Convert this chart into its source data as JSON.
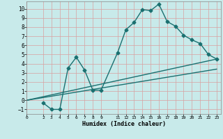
{
  "xlabel": "Humidex (Indice chaleur)",
  "ylabel": "",
  "xlim": [
    0,
    23.5
  ],
  "ylim": [
    -1.5,
    10.8
  ],
  "xticks": [
    0,
    2,
    3,
    4,
    5,
    6,
    7,
    8,
    9,
    11,
    12,
    13,
    14,
    15,
    16,
    17,
    18,
    19,
    20,
    21,
    22,
    23
  ],
  "yticks": [
    -1,
    0,
    1,
    2,
    3,
    4,
    5,
    6,
    7,
    8,
    9,
    10
  ],
  "background_color": "#c8eaea",
  "grid_color": "#d9a0a0",
  "line_color": "#1a7070",
  "line1_x": [
    2,
    3,
    4,
    5,
    6,
    7,
    8,
    9,
    11,
    12,
    13,
    14,
    15,
    16,
    17,
    18,
    19,
    20,
    21,
    22,
    23
  ],
  "line1_y": [
    -0.3,
    -1.0,
    -1.0,
    3.5,
    4.7,
    3.3,
    1.1,
    1.1,
    5.2,
    7.7,
    8.5,
    9.9,
    9.8,
    10.5,
    8.6,
    8.1,
    7.1,
    6.6,
    6.2,
    5.0,
    4.5
  ],
  "line2_x": [
    0,
    23
  ],
  "line2_y": [
    0.0,
    4.5
  ],
  "line3_x": [
    0,
    23
  ],
  "line3_y": [
    0.0,
    3.4
  ],
  "marker": "D",
  "markersize": 2.5,
  "linewidth": 1.0
}
